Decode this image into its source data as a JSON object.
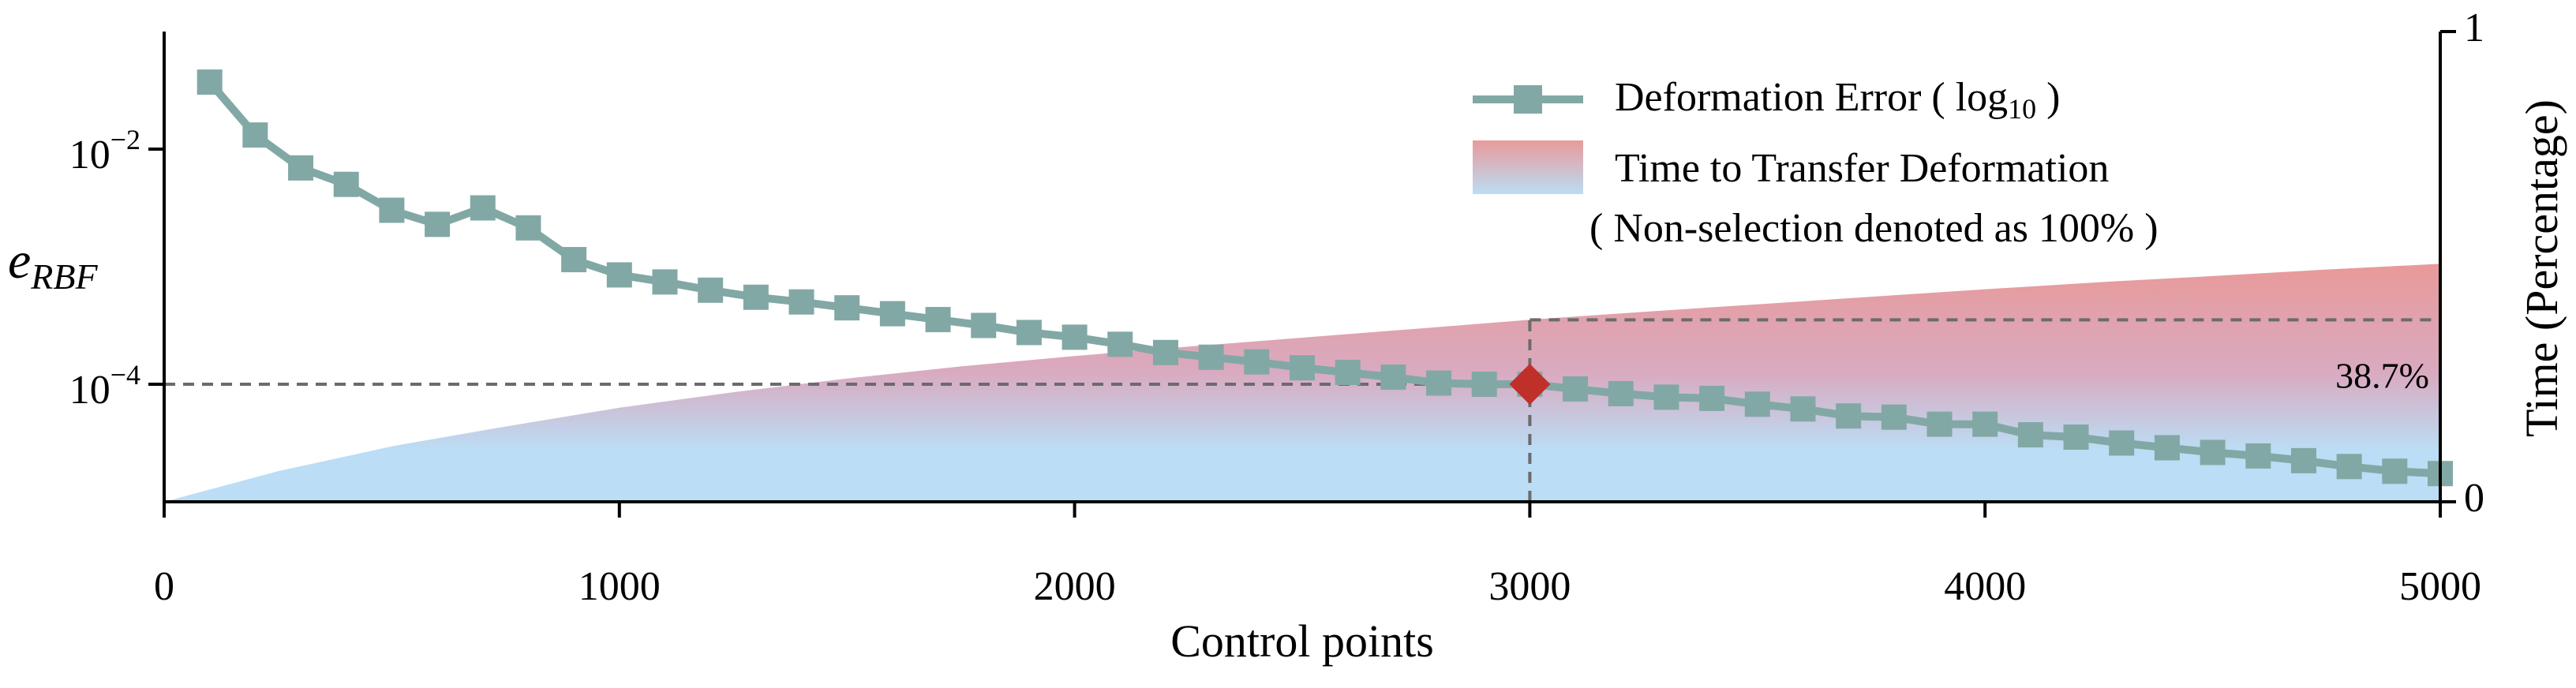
{
  "chart_data": {
    "type": "line",
    "title": "",
    "xlabel": "Control points",
    "ylabel_left": {
      "base": "e",
      "subscript": "RBF"
    },
    "ylabel_right": "Time (Percentage)",
    "xlim": [
      0,
      5000
    ],
    "x_ticks": [
      0,
      1000,
      2000,
      3000,
      4000,
      5000
    ],
    "x_tick_labels": [
      "0",
      "1000",
      "2000",
      "3000",
      "4000",
      "5000"
    ],
    "y_left_scale": "log",
    "y_left_log10_range": [
      -5.0,
      -1.0
    ],
    "y_left_ticks": [
      {
        "log10": -2,
        "base": "10",
        "exp": "−2"
      },
      {
        "log10": -4,
        "base": "10",
        "exp": "−4"
      }
    ],
    "y_right_range": [
      0,
      1
    ],
    "y_right_tick_labels": [
      "0",
      "1"
    ],
    "grid": false,
    "legend_position": "top-right",
    "series": [
      {
        "name": "Deformation Error ( log10 )",
        "legend_main": "Deformation Error ( log",
        "legend_sub": "10",
        "legend_tail": " )",
        "kind": "line-marker",
        "axis": "left",
        "color": "#82A8A5",
        "marker": "square",
        "x": [
          100,
          200,
          300,
          400,
          500,
          600,
          700,
          800,
          900,
          1000,
          1100,
          1200,
          1300,
          1400,
          1500,
          1600,
          1700,
          1800,
          1900,
          2000,
          2100,
          2200,
          2300,
          2400,
          2500,
          2600,
          2700,
          2800,
          2900,
          3000,
          3100,
          3200,
          3300,
          3400,
          3500,
          3600,
          3700,
          3800,
          3900,
          4000,
          4100,
          4200,
          4300,
          4400,
          4500,
          4600,
          4700,
          4800,
          4900,
          5000
        ],
        "log10_y": [
          -1.43,
          -1.88,
          -2.16,
          -2.3,
          -2.52,
          -2.64,
          -2.5,
          -2.67,
          -2.94,
          -3.07,
          -3.13,
          -3.2,
          -3.26,
          -3.3,
          -3.35,
          -3.4,
          -3.45,
          -3.5,
          -3.56,
          -3.6,
          -3.66,
          -3.73,
          -3.77,
          -3.81,
          -3.86,
          -3.9,
          -3.94,
          -3.99,
          -4.0,
          -4.0,
          -4.04,
          -4.08,
          -4.11,
          -4.12,
          -4.17,
          -4.21,
          -4.27,
          -4.28,
          -4.34,
          -4.34,
          -4.43,
          -4.45,
          -4.5,
          -4.54,
          -4.58,
          -4.61,
          -4.65,
          -4.7,
          -4.74,
          -4.76
        ]
      },
      {
        "name": "Time to Transfer Deformation",
        "kind": "area",
        "axis": "right",
        "color_top": "#E89A9A",
        "color_bottom": "#BBDDF5",
        "x": [
          0,
          250,
          500,
          750,
          1000,
          1250,
          1500,
          1750,
          2000,
          2250,
          2500,
          2750,
          3000,
          3250,
          3500,
          3750,
          4000,
          4250,
          4500,
          4750,
          5000
        ],
        "y": [
          0,
          0.065,
          0.118,
          0.16,
          0.2,
          0.233,
          0.262,
          0.288,
          0.31,
          0.33,
          0.349,
          0.368,
          0.387,
          0.404,
          0.42,
          0.436,
          0.452,
          0.467,
          0.48,
          0.494,
          0.506
        ]
      }
    ],
    "legend_note": "( Non-selection denoted as 100% )",
    "highlight": {
      "x": 3000,
      "log10_y": -4.0,
      "time_value": 0.387,
      "label": "38.7%",
      "marker_color": "#C0302B"
    }
  }
}
